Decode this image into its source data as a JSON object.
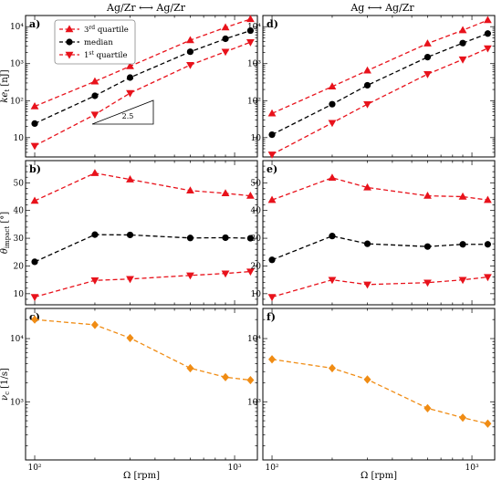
{
  "column_titles": [
    "Ag/Zr ⟷ Ag/Zr",
    "Ag ⟷ Ag/Zr"
  ],
  "x_axis": {
    "label": "Ω [rpm]",
    "scale": "log",
    "range": [
      90,
      1300
    ],
    "major_ticks": [
      100,
      1000
    ],
    "major_tick_labels": [
      "10²",
      "10³"
    ]
  },
  "rows": [
    {
      "ylabel_main": "ke",
      "ylabel_sub": "t",
      "ylabel_unit": " [nJ]",
      "scale": "log",
      "range": [
        3,
        20000
      ],
      "ticks": [
        10,
        100,
        1000,
        10000
      ],
      "tick_labels": [
        "10",
        "10²",
        "10³",
        "10⁴"
      ]
    },
    {
      "ylabel_main": "θ",
      "ylabel_sub": "impact",
      "ylabel_unit": " [°]",
      "scale": "linear",
      "range": [
        6,
        58
      ],
      "ticks": [
        10,
        20,
        30,
        40,
        50
      ],
      "tick_labels": [
        "10",
        "20",
        "30",
        "40",
        "50"
      ]
    },
    {
      "ylabel_main": "ν",
      "ylabel_sub": "c",
      "ylabel_unit": " [1/s]",
      "scale": "log",
      "range": [
        120,
        30000
      ],
      "ticks": [
        1000,
        10000
      ],
      "tick_labels": [
        "10³",
        "10⁴"
      ]
    }
  ],
  "legend": {
    "entries": [
      {
        "pre": "3",
        "sup": "rd",
        "post": " quartile",
        "color": "#e8121b",
        "marker": "triangle-up"
      },
      {
        "pre": "median",
        "sup": "",
        "post": "",
        "color": "#000000",
        "marker": "circle"
      },
      {
        "pre": "1",
        "sup": "st",
        "post": " quartile",
        "color": "#e8121b",
        "marker": "triangle-down"
      }
    ]
  },
  "annotation": {
    "text": "2.5"
  },
  "colors": {
    "quartile": "#e8121b",
    "median": "#000000",
    "collision_rate": "#f08c14"
  },
  "chart_data": [
    {
      "type": "line",
      "panel": "a)",
      "row": 0,
      "col": 0,
      "x": [
        100,
        200,
        300,
        600,
        900,
        1200
      ],
      "series": [
        {
          "name": "3rd quartile",
          "marker": "triangle-up",
          "color": "#e8121b",
          "values": [
            70,
            330,
            850,
            4300,
            9500,
            16000
          ]
        },
        {
          "name": "median",
          "marker": "circle",
          "color": "#000000",
          "values": [
            24,
            135,
            420,
            2100,
            4700,
            7800
          ]
        },
        {
          "name": "1st quartile",
          "marker": "triangle-down",
          "color": "#e8121b",
          "values": [
            6,
            42,
            160,
            920,
            2100,
            3800
          ]
        }
      ]
    },
    {
      "type": "line",
      "panel": "d)",
      "row": 0,
      "col": 1,
      "x": [
        100,
        200,
        300,
        600,
        900,
        1200
      ],
      "series": [
        {
          "name": "3rd quartile",
          "marker": "triangle-up",
          "color": "#e8121b",
          "values": [
            45,
            240,
            650,
            3500,
            8000,
            15000
          ]
        },
        {
          "name": "median",
          "marker": "circle",
          "color": "#000000",
          "values": [
            12,
            80,
            260,
            1500,
            3600,
            6500
          ]
        },
        {
          "name": "1st quartile",
          "marker": "triangle-down",
          "color": "#e8121b",
          "values": [
            3.5,
            25,
            80,
            520,
            1300,
            2600
          ]
        }
      ]
    },
    {
      "type": "line",
      "panel": "b)",
      "row": 1,
      "col": 0,
      "x": [
        100,
        200,
        300,
        600,
        900,
        1200
      ],
      "series": [
        {
          "name": "3rd quartile",
          "marker": "triangle-up",
          "color": "#e8121b",
          "values": [
            43.5,
            53.5,
            51.2,
            47.2,
            46.2,
            45.3
          ]
        },
        {
          "name": "median",
          "marker": "circle",
          "color": "#000000",
          "values": [
            21.5,
            31.3,
            31.2,
            30.1,
            30.2,
            30.0
          ]
        },
        {
          "name": "1st quartile",
          "marker": "triangle-down",
          "color": "#e8121b",
          "values": [
            8.8,
            14.8,
            15.3,
            16.6,
            17.3,
            18.0
          ]
        }
      ]
    },
    {
      "type": "line",
      "panel": "e)",
      "row": 1,
      "col": 1,
      "x": [
        100,
        200,
        300,
        600,
        900,
        1200
      ],
      "series": [
        {
          "name": "3rd quartile",
          "marker": "triangle-up",
          "color": "#e8121b",
          "values": [
            43.8,
            51.8,
            48.3,
            45.3,
            45.0,
            43.8
          ]
        },
        {
          "name": "median",
          "marker": "circle",
          "color": "#000000",
          "values": [
            22.2,
            30.8,
            28.0,
            27.0,
            27.8,
            27.8
          ]
        },
        {
          "name": "1st quartile",
          "marker": "triangle-down",
          "color": "#e8121b",
          "values": [
            8.8,
            15.0,
            13.3,
            14.0,
            15.0,
            16.0
          ]
        }
      ]
    },
    {
      "type": "line",
      "panel": "c)",
      "row": 2,
      "col": 0,
      "x": [
        100,
        200,
        300,
        600,
        900,
        1200
      ],
      "series": [
        {
          "marker": "diamond",
          "color": "#f08c14",
          "values": [
            20000,
            16500,
            10200,
            3400,
            2450,
            2200
          ]
        }
      ]
    },
    {
      "type": "line",
      "panel": "f)",
      "row": 2,
      "col": 1,
      "x": [
        100,
        200,
        300,
        600,
        900,
        1200
      ],
      "series": [
        {
          "marker": "diamond",
          "color": "#f08c14",
          "values": [
            4700,
            3400,
            2250,
            790,
            560,
            450
          ]
        }
      ]
    }
  ]
}
